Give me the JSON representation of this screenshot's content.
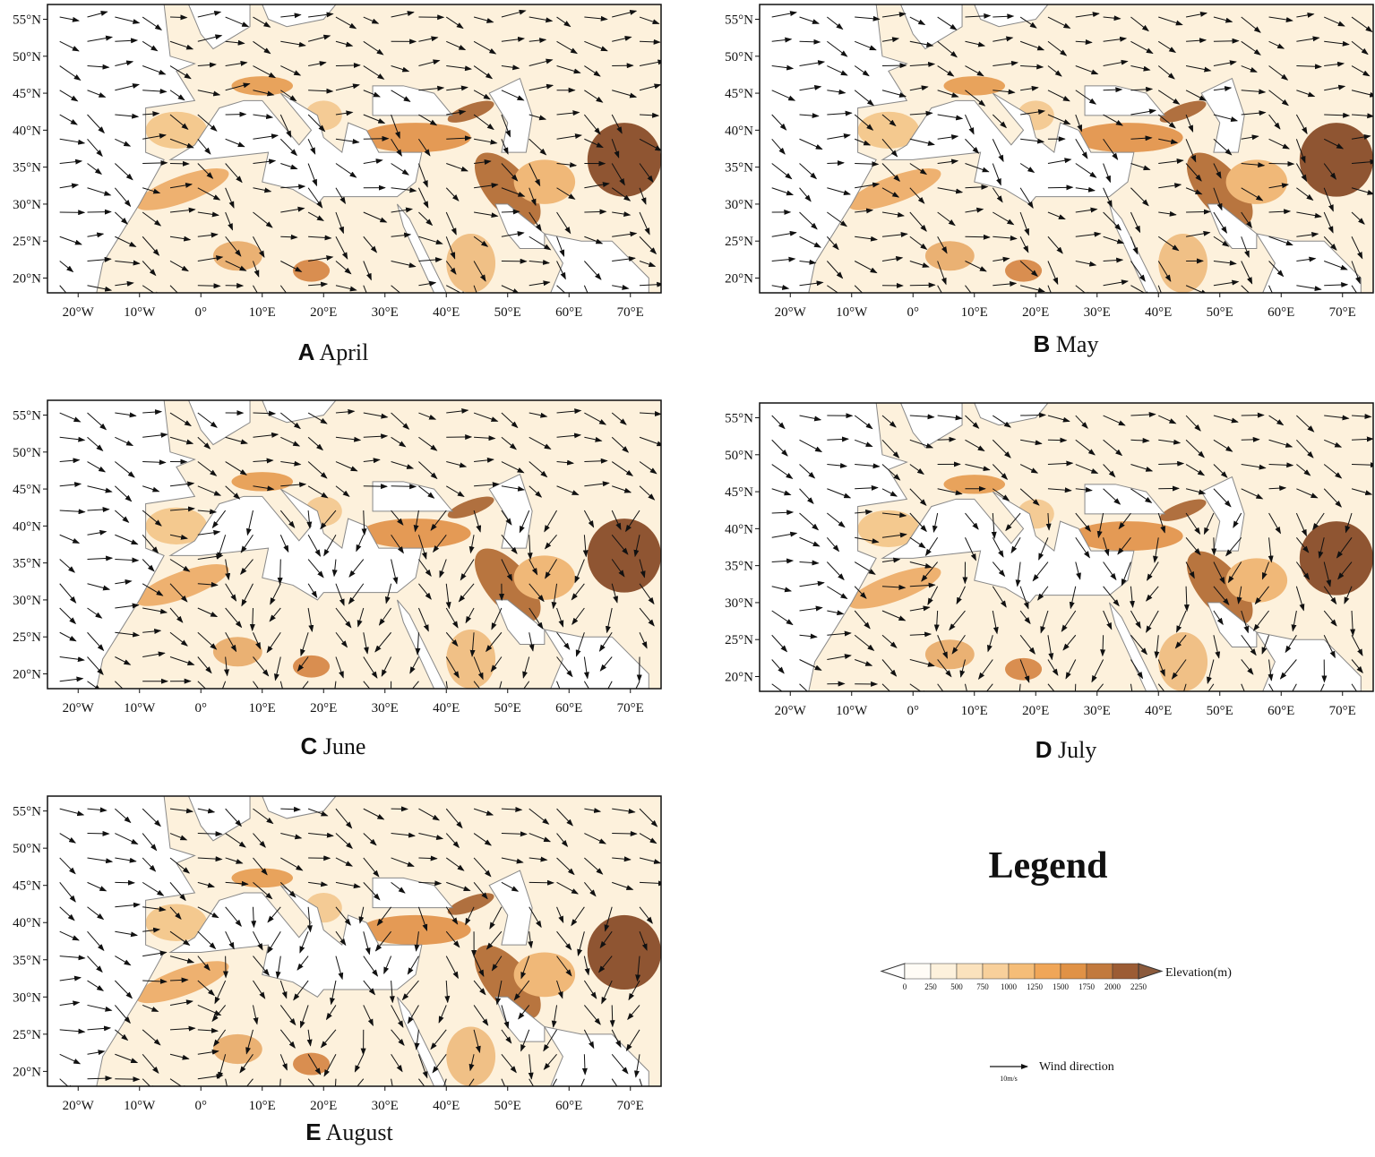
{
  "panels": [
    {
      "letter": "A",
      "month": "April"
    },
    {
      "letter": "B",
      "month": "May"
    },
    {
      "letter": "C",
      "month": "June"
    },
    {
      "letter": "D",
      "month": "July"
    },
    {
      "letter": "E",
      "month": "August"
    }
  ],
  "axes": {
    "xticks": [
      "20°W",
      "10°W",
      "0°",
      "10°E",
      "20°E",
      "30°E",
      "40°E",
      "50°E",
      "60°E",
      "70°E"
    ],
    "yticks": [
      "55°N",
      "50°N",
      "45°N",
      "40°N",
      "35°N",
      "30°N",
      "25°N",
      "20°N"
    ]
  },
  "legend": {
    "title": "Legend",
    "colorbar": {
      "label": "Elevation(m)",
      "ticks": [
        0,
        250,
        500,
        750,
        1000,
        1250,
        1500,
        1750,
        2000,
        2250
      ]
    },
    "wind": {
      "label": "Wind direction",
      "scale": "10m/s"
    }
  }
}
